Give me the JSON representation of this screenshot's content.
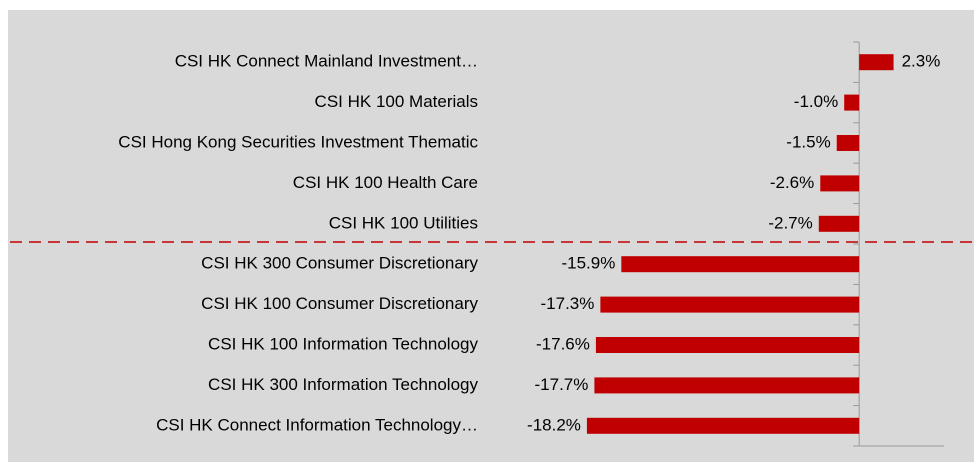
{
  "chart_data": {
    "type": "bar",
    "orientation": "horizontal",
    "categories": [
      "CSI HK Connect Mainland Investment…",
      "CSI HK 100 Materials",
      "CSI Hong Kong Securities Investment Thematic",
      "CSI HK 100 Health Care",
      "CSI HK 100 Utilities",
      "CSI HK 300 Consumer Discretionary",
      "CSI HK 100 Consumer Discretionary",
      "CSI HK 100 Information Technology",
      "CSI HK 300 Information Technology",
      "CSI HK Connect Information Technology…"
    ],
    "values": [
      2.3,
      -1.0,
      -1.5,
      -2.6,
      -2.7,
      -15.9,
      -17.3,
      -17.6,
      -17.7,
      -18.2
    ],
    "value_labels": [
      "2.3%",
      "-1.0%",
      "-1.5%",
      "-2.6%",
      "-2.7%",
      "-15.9%",
      "-17.3%",
      "-17.6%",
      "-17.7%",
      "-18.2%"
    ],
    "color": "#c00000",
    "xlim": [
      -20,
      4
    ]
  }
}
